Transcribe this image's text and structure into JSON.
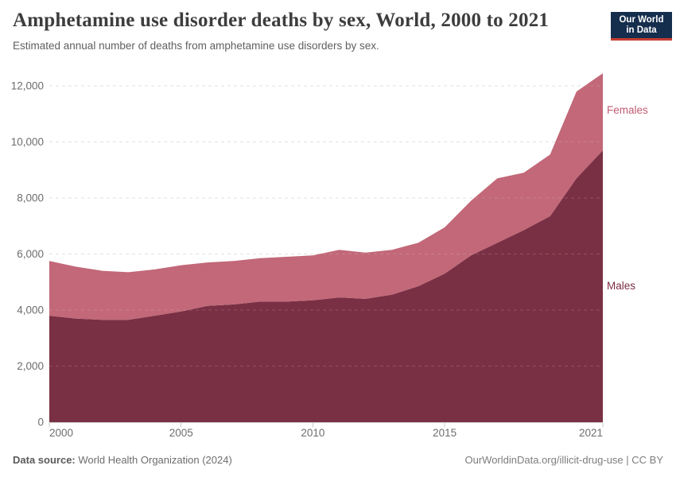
{
  "header": {
    "title": "Amphetamine use disorder deaths by sex, World, 2000 to 2021",
    "subtitle": "Estimated annual number of deaths from amphetamine use disorders by sex."
  },
  "logo": {
    "line1": "Our World",
    "line2": "in Data",
    "bg_color": "#152e4d",
    "bar_color": "#c63c33"
  },
  "chart_data": {
    "type": "area",
    "stacked": true,
    "title": "Amphetamine use disorder deaths by sex, World, 2000 to 2021",
    "xlabel": "",
    "ylabel": "",
    "x": [
      2000,
      2001,
      2002,
      2003,
      2004,
      2005,
      2006,
      2007,
      2008,
      2009,
      2010,
      2011,
      2012,
      2013,
      2014,
      2015,
      2016,
      2017,
      2018,
      2019,
      2020,
      2021
    ],
    "series": [
      {
        "name": "Males",
        "color": "#7a3044",
        "label_color": "#7c2d43",
        "values": [
          3800,
          3700,
          3650,
          3650,
          3800,
          3950,
          4150,
          4200,
          4300,
          4300,
          4350,
          4450,
          4400,
          4550,
          4850,
          5300,
          5950,
          6400,
          6850,
          7350,
          8700,
          9700
        ]
      },
      {
        "name": "Females",
        "color": "#c26878",
        "label_color": "#c05c74",
        "values": [
          1950,
          1850,
          1750,
          1700,
          1650,
          1650,
          1550,
          1550,
          1550,
          1600,
          1600,
          1700,
          1650,
          1600,
          1550,
          1650,
          1950,
          2300,
          2050,
          2200,
          3100,
          2750
        ]
      }
    ],
    "ylim": [
      0,
      12000
    ],
    "y_ticks": [
      0,
      2000,
      4000,
      6000,
      8000,
      10000,
      12000
    ],
    "x_ticks": [
      2000,
      2005,
      2010,
      2015,
      2021
    ],
    "grid": "dashed-horizontal",
    "legend_position": "right-inline",
    "axis_color": "#c8c8c8",
    "grid_color": "#dcdcdc",
    "tick_label_color": "#6d6d6d"
  },
  "footer": {
    "datasource_label": "Data source:",
    "datasource": "World Health Organization (2024)",
    "credit": "OurWorldinData.org/illicit-drug-use | CC BY"
  }
}
